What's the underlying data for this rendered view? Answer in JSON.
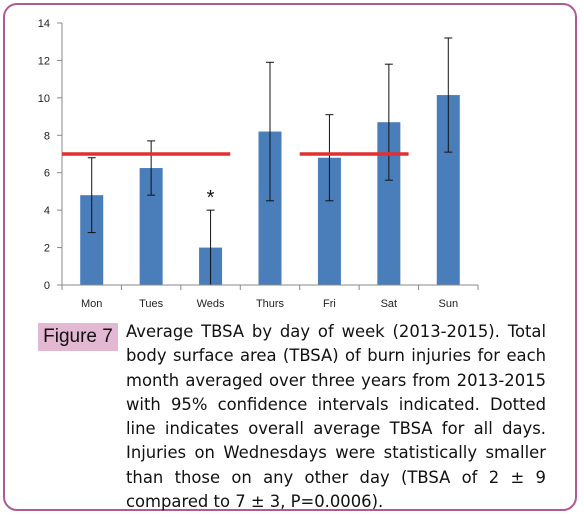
{
  "figure": {
    "label": "Figure 7",
    "caption": "Average TBSA by day of week (2013-2015). Total body surface area (TBSA) of burn injuries for each month averaged over three years from 2013-2015 with 95% confidence intervals indicated. Dotted line indicates overall average TBSA for all days. Injuries on Wednesdays were statistically smaller than those on any other day (TBSA of 2 ± 9 compared to 7 ± 3, P=0.0006)."
  },
  "colors": {
    "bar": "#4a7ebb",
    "reference_line": "#e03030",
    "frame": "#b05a93",
    "label_bg": "#e3b8d2"
  },
  "chart_data": {
    "type": "bar",
    "categories": [
      "Mon",
      "Tues",
      "Weds",
      "Thurs",
      "Fri",
      "Sat",
      "Sun"
    ],
    "values": [
      4.8,
      6.25,
      2.0,
      8.2,
      6.8,
      8.7,
      10.15
    ],
    "error_low": [
      2.8,
      4.8,
      0.0,
      4.5,
      4.5,
      5.6,
      7.1
    ],
    "error_high": [
      6.8,
      7.7,
      4.0,
      11.9,
      9.1,
      11.8,
      13.2
    ],
    "ylim": [
      0,
      14
    ],
    "yticks": [
      0,
      2,
      4,
      6,
      8,
      10,
      12,
      14
    ],
    "reference_lines": [
      {
        "value": 7.0,
        "from": "Mon",
        "to": "Weds"
      },
      {
        "value": 7.0,
        "from": "Fri",
        "to": "Sat"
      }
    ],
    "annotations": [
      {
        "category": "Weds",
        "text": "*"
      }
    ],
    "grid": false,
    "title": "",
    "xlabel": "",
    "ylabel": ""
  }
}
